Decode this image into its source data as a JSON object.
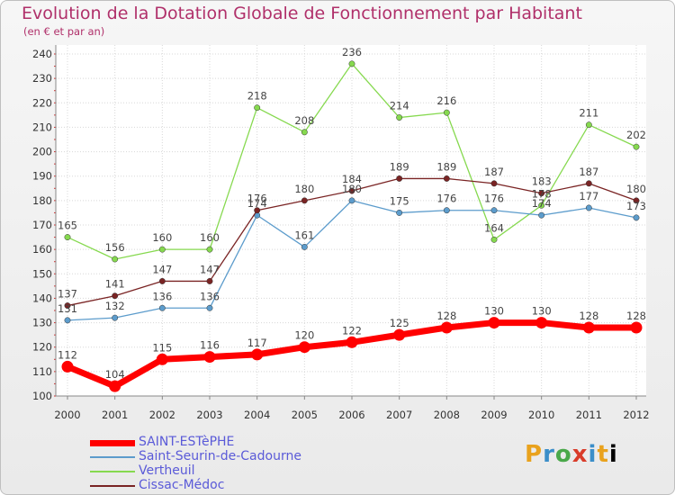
{
  "title": "Evolution de la Dotation Globale de Fonctionnement par Habitant",
  "subtitle": "(en € et par an)",
  "logo": [
    "P",
    "r",
    "o",
    "x",
    "i",
    "t",
    "i"
  ],
  "chart_data": {
    "type": "line",
    "x": [
      "2000",
      "2001",
      "2002",
      "2003",
      "2004",
      "2005",
      "2006",
      "2007",
      "2008",
      "2009",
      "2010",
      "2011",
      "2012"
    ],
    "ylim": [
      100,
      240
    ],
    "yticks": [
      100,
      110,
      120,
      130,
      140,
      150,
      160,
      170,
      180,
      190,
      200,
      210,
      220,
      230,
      240
    ],
    "grid": true,
    "legend_position": "bottom-left",
    "series": [
      {
        "name": "SAINT-ESTèPHE",
        "color": "#ff0000",
        "values": [
          112,
          104,
          115,
          116,
          117,
          120,
          122,
          125,
          128,
          130,
          130,
          128,
          128
        ]
      },
      {
        "name": "Saint-Seurin-de-Cadourne",
        "color": "#5c9ccc",
        "values": [
          131,
          132,
          136,
          136,
          174,
          161,
          180,
          175,
          176,
          176,
          174,
          177,
          173
        ]
      },
      {
        "name": "Vertheuil",
        "color": "#86d94f",
        "values": [
          165,
          156,
          160,
          160,
          218,
          208,
          236,
          214,
          216,
          164,
          178,
          211,
          202
        ]
      },
      {
        "name": "Cissac-Médoc",
        "color": "#7a2424",
        "values": [
          137,
          141,
          147,
          147,
          176,
          180,
          184,
          189,
          189,
          187,
          183,
          187,
          180
        ]
      }
    ]
  }
}
